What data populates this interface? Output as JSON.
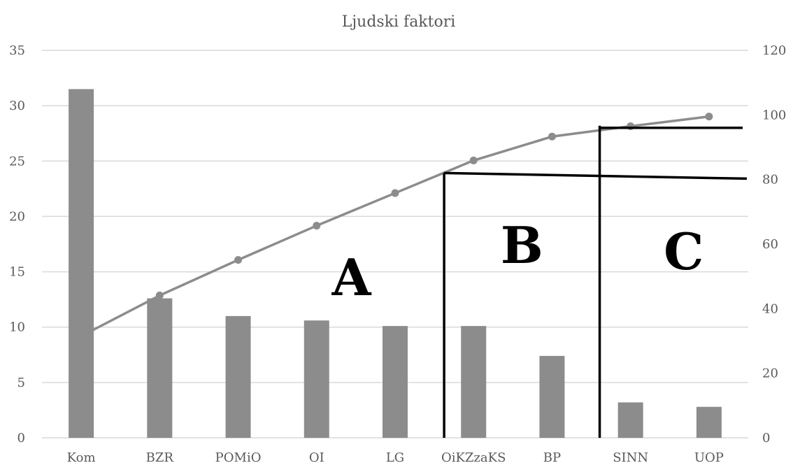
{
  "chart_data": {
    "type": "bar",
    "title": "Ljudski faktori",
    "categories": [
      "Kom",
      "BZR",
      "POMiO",
      "OI",
      "LG",
      "OiKZzaKS",
      "BP",
      "SINN",
      "UOP"
    ],
    "series": [
      {
        "type": "bar",
        "axis": "left",
        "values": [
          31.5,
          12.6,
          11.0,
          10.6,
          10.1,
          10.1,
          7.4,
          3.2,
          2.8
        ],
        "color": "#8c8c8c"
      },
      {
        "type": "line",
        "axis": "right",
        "values": [
          31.5,
          44.1,
          55.1,
          65.7,
          75.8,
          85.9,
          93.3,
          96.5,
          99.5
        ],
        "color": "#8c8c8c"
      }
    ],
    "y_left": {
      "min": 0,
      "max": 35,
      "step": 5,
      "ticks": [
        "0",
        "5",
        "10",
        "15",
        "20",
        "25",
        "30",
        "35"
      ]
    },
    "y_right": {
      "min": 0,
      "max": 120,
      "step": 20,
      "ticks": [
        "0",
        "20",
        "40",
        "60",
        "80",
        "100",
        "120"
      ]
    },
    "grid": true,
    "legend": "none",
    "annotations": {
      "zones": [
        "A",
        "B",
        "C"
      ],
      "cut_levels_right_axis": [
        82,
        96
      ],
      "zone_color": "#000000"
    }
  }
}
